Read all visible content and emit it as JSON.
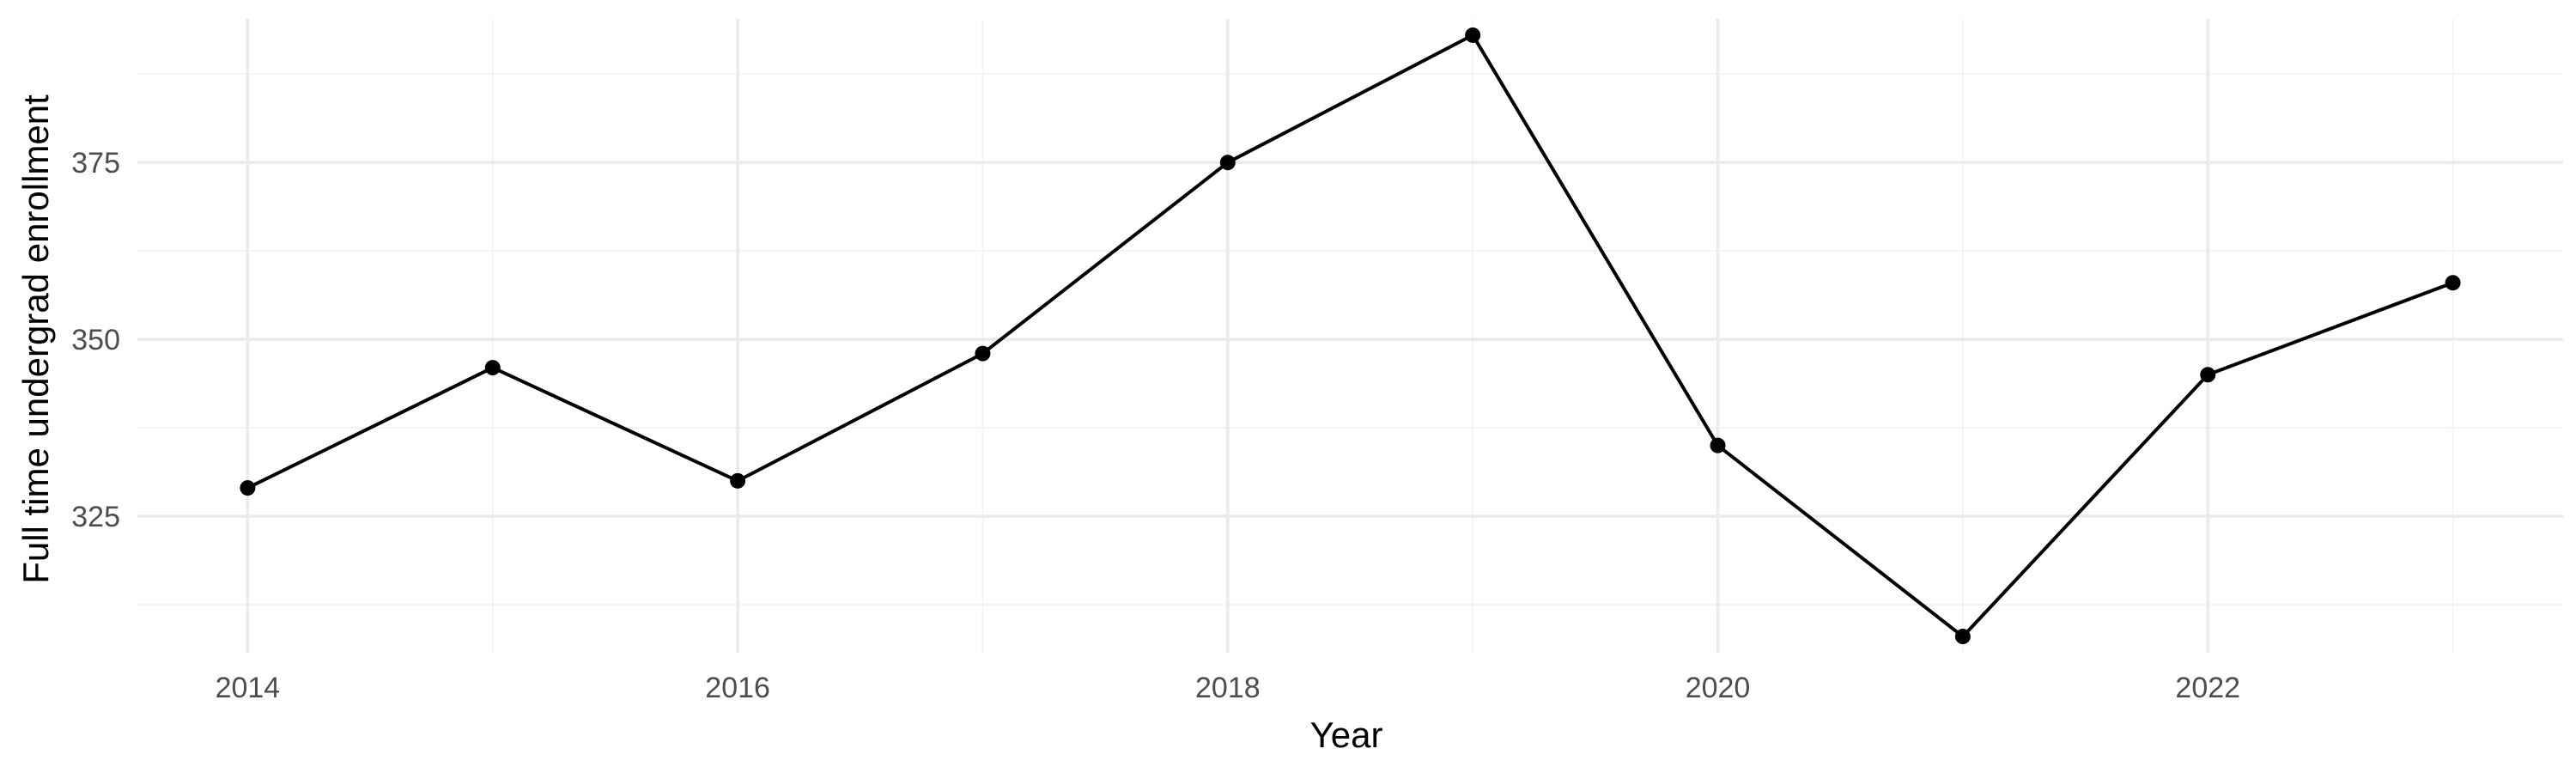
{
  "chart_data": {
    "type": "line",
    "title": "",
    "xlabel": "Year",
    "ylabel": "Full time undergrad enrollment",
    "x": [
      2014,
      2015,
      2016,
      2017,
      2018,
      2019,
      2020,
      2021,
      2022,
      2023
    ],
    "series": [
      {
        "values": [
          329,
          346,
          330,
          348,
          375,
          393,
          335,
          308,
          345,
          358
        ]
      }
    ],
    "xlim": [
      2013.55,
      2023.45
    ],
    "ylim": [
      305.7,
      395.3
    ],
    "x_ticks": [
      2014,
      2016,
      2018,
      2020,
      2022
    ],
    "x_tick_labels": [
      "2014",
      "2016",
      "2018",
      "2020",
      "2022"
    ],
    "y_ticks": [
      325,
      350,
      375
    ],
    "y_tick_labels": [
      "325",
      "350",
      "375"
    ],
    "grid": true,
    "legend": "none",
    "colors": {
      "line": "#000000",
      "grid_major": "#ebebeb",
      "grid_minor": "#f3f3f3",
      "tick_text": "#4d4d4d",
      "background": "#ffffff"
    }
  }
}
